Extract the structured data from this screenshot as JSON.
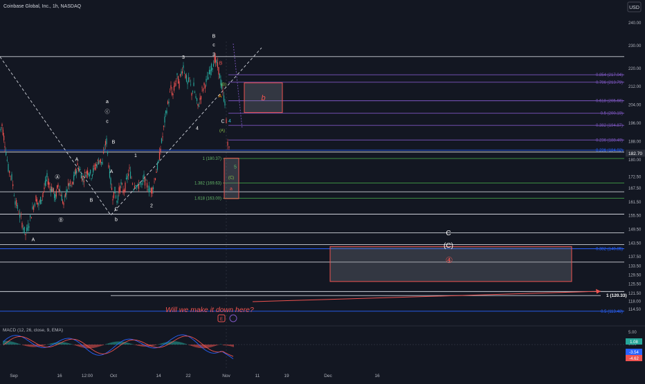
{
  "header": {
    "title": "Coinbase Global, Inc., 1h, NASDAQ",
    "currency": "USD"
  },
  "chart_data": {
    "type": "candlestick",
    "title": "Coinbase Global, Inc., 1h, NASDAQ",
    "ylim": [
      110,
      242
    ],
    "y_ticks": [
      240.0,
      230.0,
      220.0,
      212.0,
      204.0,
      196.0,
      188.0,
      180.0,
      172.5,
      167.5,
      161.5,
      155.5,
      149.5,
      143.5,
      137.5,
      133.5,
      129.5,
      125.5,
      121.5,
      118.0,
      114.5
    ],
    "x_ticks": [
      "Sep",
      "16",
      "12:00",
      "Oct",
      "14",
      "22",
      "Nov",
      "11",
      "19",
      "Dec",
      "16"
    ],
    "last_price": "182.70",
    "price_path": [
      [
        0,
        193
      ],
      [
        3,
        195
      ],
      [
        7,
        187
      ],
      [
        12,
        176
      ],
      [
        17,
        172
      ],
      [
        22,
        162
      ],
      [
        27,
        157
      ],
      [
        32,
        152
      ],
      [
        37,
        147
      ],
      [
        42,
        152
      ],
      [
        47,
        158
      ],
      [
        52,
        163
      ],
      [
        56,
        160
      ],
      [
        60,
        163
      ],
      [
        64,
        167
      ],
      [
        68,
        172
      ],
      [
        72,
        168
      ],
      [
        76,
        167
      ],
      [
        80,
        163
      ],
      [
        84,
        169
      ],
      [
        88,
        165
      ],
      [
        92,
        160
      ],
      [
        96,
        166
      ],
      [
        100,
        169
      ],
      [
        104,
        168
      ],
      [
        108,
        173
      ],
      [
        112,
        177
      ],
      [
        116,
        175
      ],
      [
        120,
        171
      ],
      [
        124,
        174
      ],
      [
        128,
        175
      ],
      [
        132,
        173
      ],
      [
        136,
        176
      ],
      [
        140,
        178
      ],
      [
        144,
        180
      ],
      [
        148,
        178
      ],
      [
        151,
        185
      ],
      [
        154,
        188
      ],
      [
        157,
        178
      ],
      [
        160,
        170
      ],
      [
        163,
        164
      ],
      [
        166,
        166
      ],
      [
        169,
        162
      ],
      [
        172,
        166
      ],
      [
        175,
        169
      ],
      [
        178,
        166
      ],
      [
        181,
        168
      ],
      [
        184,
        172
      ],
      [
        187,
        175
      ],
      [
        190,
        172
      ],
      [
        193,
        168
      ],
      [
        196,
        170
      ],
      [
        199,
        167
      ],
      [
        202,
        170
      ],
      [
        205,
        168
      ],
      [
        208,
        172
      ],
      [
        211,
        169
      ],
      [
        214,
        168
      ],
      [
        217,
        166
      ],
      [
        220,
        167
      ],
      [
        223,
        170
      ],
      [
        226,
        175
      ],
      [
        229,
        178
      ],
      [
        232,
        185
      ],
      [
        235,
        190
      ],
      [
        238,
        197
      ],
      [
        241,
        202
      ],
      [
        244,
        206
      ],
      [
        247,
        211
      ],
      [
        250,
        208
      ],
      [
        253,
        213
      ],
      [
        256,
        216
      ],
      [
        259,
        213
      ],
      [
        262,
        218
      ],
      [
        265,
        221
      ],
      [
        268,
        217
      ],
      [
        271,
        213
      ],
      [
        274,
        215
      ],
      [
        277,
        209
      ],
      [
        280,
        212
      ],
      [
        283,
        207
      ],
      [
        286,
        203
      ],
      [
        289,
        206
      ],
      [
        292,
        210
      ],
      [
        295,
        212
      ],
      [
        298,
        214
      ],
      [
        301,
        216
      ],
      [
        304,
        219
      ],
      [
        307,
        221
      ],
      [
        310,
        224
      ],
      [
        313,
        222
      ],
      [
        316,
        219
      ],
      [
        319,
        214
      ],
      [
        322,
        209
      ],
      [
        325,
        205
      ],
      [
        327,
        196
      ],
      [
        329,
        188
      ],
      [
        331,
        184
      ],
      [
        333,
        182.7
      ]
    ],
    "levels": [
      {
        "label": "0.854 (217.04)",
        "value": 217.04,
        "color": "#7e57c2"
      },
      {
        "label": "0.786 (213.79)",
        "value": 213.79,
        "color": "#7e57c2"
      },
      {
        "label": "0.618 (205.66)",
        "value": 205.66,
        "color": "#7e57c2"
      },
      {
        "label": "0.5 (200.19)",
        "value": 200.19,
        "color": "#7e57c2"
      },
      {
        "label": "0.382 (194.87)",
        "value": 194.87,
        "color": "#7e57c2"
      },
      {
        "label": "0.236 (188.49)",
        "value": 188.49,
        "color": "#7e57c2"
      },
      {
        "label": "0.236 (184.02)",
        "value": 184.02,
        "color": "#2962ff"
      },
      {
        "label": "0.382 (140.85)",
        "value": 140.85,
        "color": "#2962ff"
      },
      {
        "label": "0.5 (113.48)",
        "value": 113.48,
        "color": "#2962ff"
      }
    ],
    "green_levels": [
      {
        "label": "1 (180.37)",
        "value": 180.37
      },
      {
        "label": "1.382 (169.63)",
        "value": 169.63
      },
      {
        "label": "1.618 (163.00)",
        "value": 163.0
      }
    ],
    "target_label": "1 (120.33)",
    "target_value": 120.33,
    "white_levels": [
      225.0,
      183.2,
      165.8,
      156.0,
      147.8,
      142.7,
      135.0,
      122.1
    ],
    "wave_labels": [
      {
        "text": "A",
        "x": 48,
        "y": 144.2,
        "color": "#ffffff"
      },
      {
        "text": "a",
        "x": 155,
        "y": 204.6,
        "color": "#ffffff"
      },
      {
        "text": "ⓒ",
        "x": 155,
        "y": 200.2,
        "color": "#ffffff"
      },
      {
        "text": "c",
        "x": 155,
        "y": 196.0,
        "color": "#ffffff"
      },
      {
        "text": "Ⓐ",
        "x": 83,
        "y": 171.6,
        "color": "#ffffff"
      },
      {
        "text": "Ⓑ",
        "x": 88,
        "y": 152.8,
        "color": "#ffffff"
      },
      {
        "text": "A",
        "x": 111,
        "y": 179.3,
        "color": "#ffffff"
      },
      {
        "text": "B",
        "x": 132,
        "y": 161.4,
        "color": "#ffffff"
      },
      {
        "text": "A",
        "x": 161,
        "y": 174.1,
        "color": "#ffffff"
      },
      {
        "text": "B",
        "x": 164,
        "y": 186.9,
        "color": "#ffffff"
      },
      {
        "text": "C",
        "x": 168,
        "y": 157.5,
        "color": "#ffffff"
      },
      {
        "text": "b",
        "x": 168,
        "y": 153.0,
        "color": "#ffffff"
      },
      {
        "text": "1",
        "x": 196,
        "y": 181.0,
        "color": "#ffffff"
      },
      {
        "text": "2",
        "x": 219,
        "y": 159.0,
        "color": "#ffffff"
      },
      {
        "text": "3",
        "x": 265,
        "y": 224.0,
        "color": "#ffffff"
      },
      {
        "text": "4",
        "x": 285,
        "y": 193.0,
        "color": "#ffffff"
      },
      {
        "text": "B",
        "x": 309,
        "y": 233.3,
        "color": "#ffffff"
      },
      {
        "text": "c",
        "x": 309,
        "y": 229.5,
        "color": "#ffffff"
      },
      {
        "text": "3",
        "x": 309,
        "y": 225.3,
        "color": "#ffffff"
      },
      {
        "text": "B",
        "x": 319,
        "y": 221.5,
        "color": "#ef5350"
      },
      {
        "text": "(B)",
        "x": 323,
        "y": 212.2,
        "color": "#8bc34a"
      },
      {
        "text": "A",
        "x": 318,
        "y": 207.0,
        "color": "#ff9800"
      },
      {
        "text": "C",
        "x": 322,
        "y": 196.0,
        "color": "#ffffff"
      },
      {
        "text": "(A)",
        "x": 321,
        "y": 192.0,
        "color": "#8bc34a"
      },
      {
        "text": "4",
        "x": 332,
        "y": 196.2,
        "color": "#26c6da"
      },
      {
        "text": "5",
        "x": 340,
        "y": 176.0,
        "color": "#66bb6a"
      },
      {
        "text": "(C)",
        "x": 334,
        "y": 171.5,
        "color": "#8bc34a"
      },
      {
        "text": "a",
        "x": 334,
        "y": 166.4,
        "color": "#ef5350"
      }
    ],
    "zones": [
      {
        "label": "b",
        "x0": 353,
        "x1": 408,
        "y_top": 213.5,
        "y_bottom": 200.5,
        "label_color": "#ef5350"
      },
      {
        "label": "",
        "x0": 324,
        "x1": 345,
        "y_top": 180.5,
        "y_bottom": 162.8,
        "label_color": "#ef5350"
      },
      {
        "label": "",
        "x0": 477,
        "x1": 826,
        "y_top": 141.8,
        "y_bottom": 126.5,
        "label_color": "#ffffff"
      }
    ],
    "zone_text": {
      "c": "C",
      "paren_c": "(C)",
      "circle_4": "④"
    },
    "annotation": "Will we make it down here?",
    "macd": {
      "title": "MACD (12, 26, close, 9, EMA)",
      "ticks": [
        "5.00",
        "0.00",
        "-5.00"
      ],
      "values": [
        {
          "label": "1.08",
          "color": "#26a69a"
        },
        {
          "label": "-3.54",
          "color": "#2962ff"
        },
        {
          "label": "-4.62",
          "color": "#ef5350"
        }
      ]
    }
  }
}
